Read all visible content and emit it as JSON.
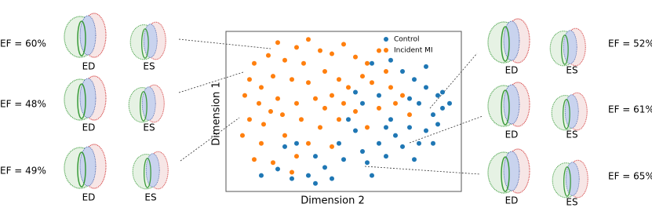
{
  "chart_data": {
    "type": "scatter",
    "xlabel": "Dimension 2",
    "ylabel": "Dimension 1",
    "xlim": [
      0,
      100
    ],
    "ylim": [
      0,
      100
    ],
    "legend": "upper right",
    "series": [
      {
        "name": "Control",
        "color": "#1f77b4",
        "x": [
          62,
          70,
          75,
          80,
          85,
          90,
          82,
          88,
          92,
          78,
          85,
          72,
          65,
          58,
          50,
          42,
          35,
          28,
          22,
          30,
          38,
          48,
          55,
          60,
          68,
          75,
          82,
          90,
          95,
          70,
          65,
          58,
          52,
          45,
          38,
          25,
          15,
          80,
          62,
          55,
          85,
          78,
          68,
          88,
          92
        ],
        "values": [
          80,
          82,
          75,
          70,
          65,
          60,
          55,
          48,
          52,
          40,
          38,
          35,
          30,
          25,
          20,
          15,
          10,
          8,
          14,
          30,
          22,
          30,
          38,
          18,
          22,
          28,
          30,
          42,
          55,
          45,
          60,
          55,
          45,
          8,
          5,
          28,
          10,
          20,
          10,
          62,
          78,
          58,
          40,
          30,
          62
        ]
      },
      {
        "name": "Incident MI",
        "color": "#ff7f0e",
        "x": [
          22,
          30,
          35,
          40,
          18,
          12,
          25,
          33,
          45,
          50,
          55,
          60,
          65,
          10,
          15,
          20,
          28,
          35,
          42,
          48,
          8,
          14,
          22,
          30,
          38,
          45,
          52,
          58,
          62,
          68,
          10,
          16,
          24,
          32,
          40,
          48,
          55,
          7,
          15,
          25,
          35,
          45,
          12,
          20,
          30,
          70,
          72,
          75,
          78,
          60,
          65,
          28,
          50,
          19,
          42
        ],
        "values": [
          93,
          90,
          95,
          88,
          85,
          80,
          82,
          80,
          86,
          92,
          84,
          80,
          88,
          70,
          65,
          72,
          70,
          68,
          75,
          70,
          60,
          55,
          58,
          55,
          58,
          60,
          65,
          72,
          68,
          75,
          45,
          42,
          48,
          45,
          40,
          45,
          50,
          35,
          30,
          35,
          30,
          28,
          20,
          18,
          22,
          65,
          55,
          60,
          48,
          40,
          52,
          12,
          55,
          50,
          52
        ]
      }
    ]
  },
  "cases": [
    {
      "ef": "EF = 60%",
      "ed": "ED",
      "es": "ES"
    },
    {
      "ef": "EF = 48%",
      "ed": "ED",
      "es": "ES"
    },
    {
      "ef": "EF = 49%",
      "ed": "ED",
      "es": "ES"
    },
    {
      "ef": "EF = 52%",
      "ed": "ED",
      "es": "ES"
    },
    {
      "ef": "EF = 61%",
      "ed": "ED",
      "es": "ES"
    },
    {
      "ef": "EF = 65%",
      "ed": "ED",
      "es": "ES"
    }
  ]
}
